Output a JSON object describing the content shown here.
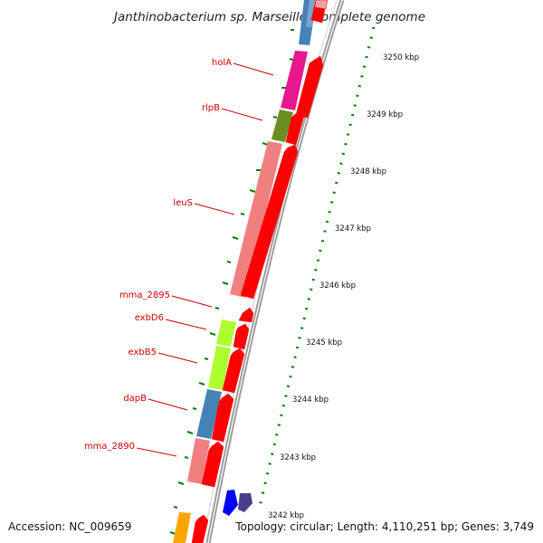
{
  "title": "Janthinobacterium sp. Marseille, complete genome",
  "accession": "Accession: NC_009659",
  "summary": "Topology: circular; Length: 4,110,251 bp; Genes: 3,749",
  "genes": [
    {
      "name": "holA",
      "color": "#e6178f"
    },
    {
      "name": "rlpB",
      "color": "#6b8e23"
    },
    {
      "name": "leuS",
      "color": "#f08080"
    },
    {
      "name": "mma_2895",
      "color": "#ff0000"
    },
    {
      "name": "exbD6",
      "color": "#adff2f"
    },
    {
      "name": "exbB5",
      "color": "#adff2f"
    },
    {
      "name": "dapB",
      "color": "#4682b4"
    },
    {
      "name": "mma_2890",
      "color": "#f08080"
    }
  ],
  "ticks": [
    "3250 kbp",
    "3249 kbp",
    "3248 kbp",
    "3247 kbp",
    "3246 kbp",
    "3245 kbp",
    "3244 kbp",
    "3243 kbp",
    "3242 kbp"
  ],
  "colors": {
    "forward_strand": "#ff0000",
    "backbone": "#808080",
    "tick_marks": "#008000"
  }
}
